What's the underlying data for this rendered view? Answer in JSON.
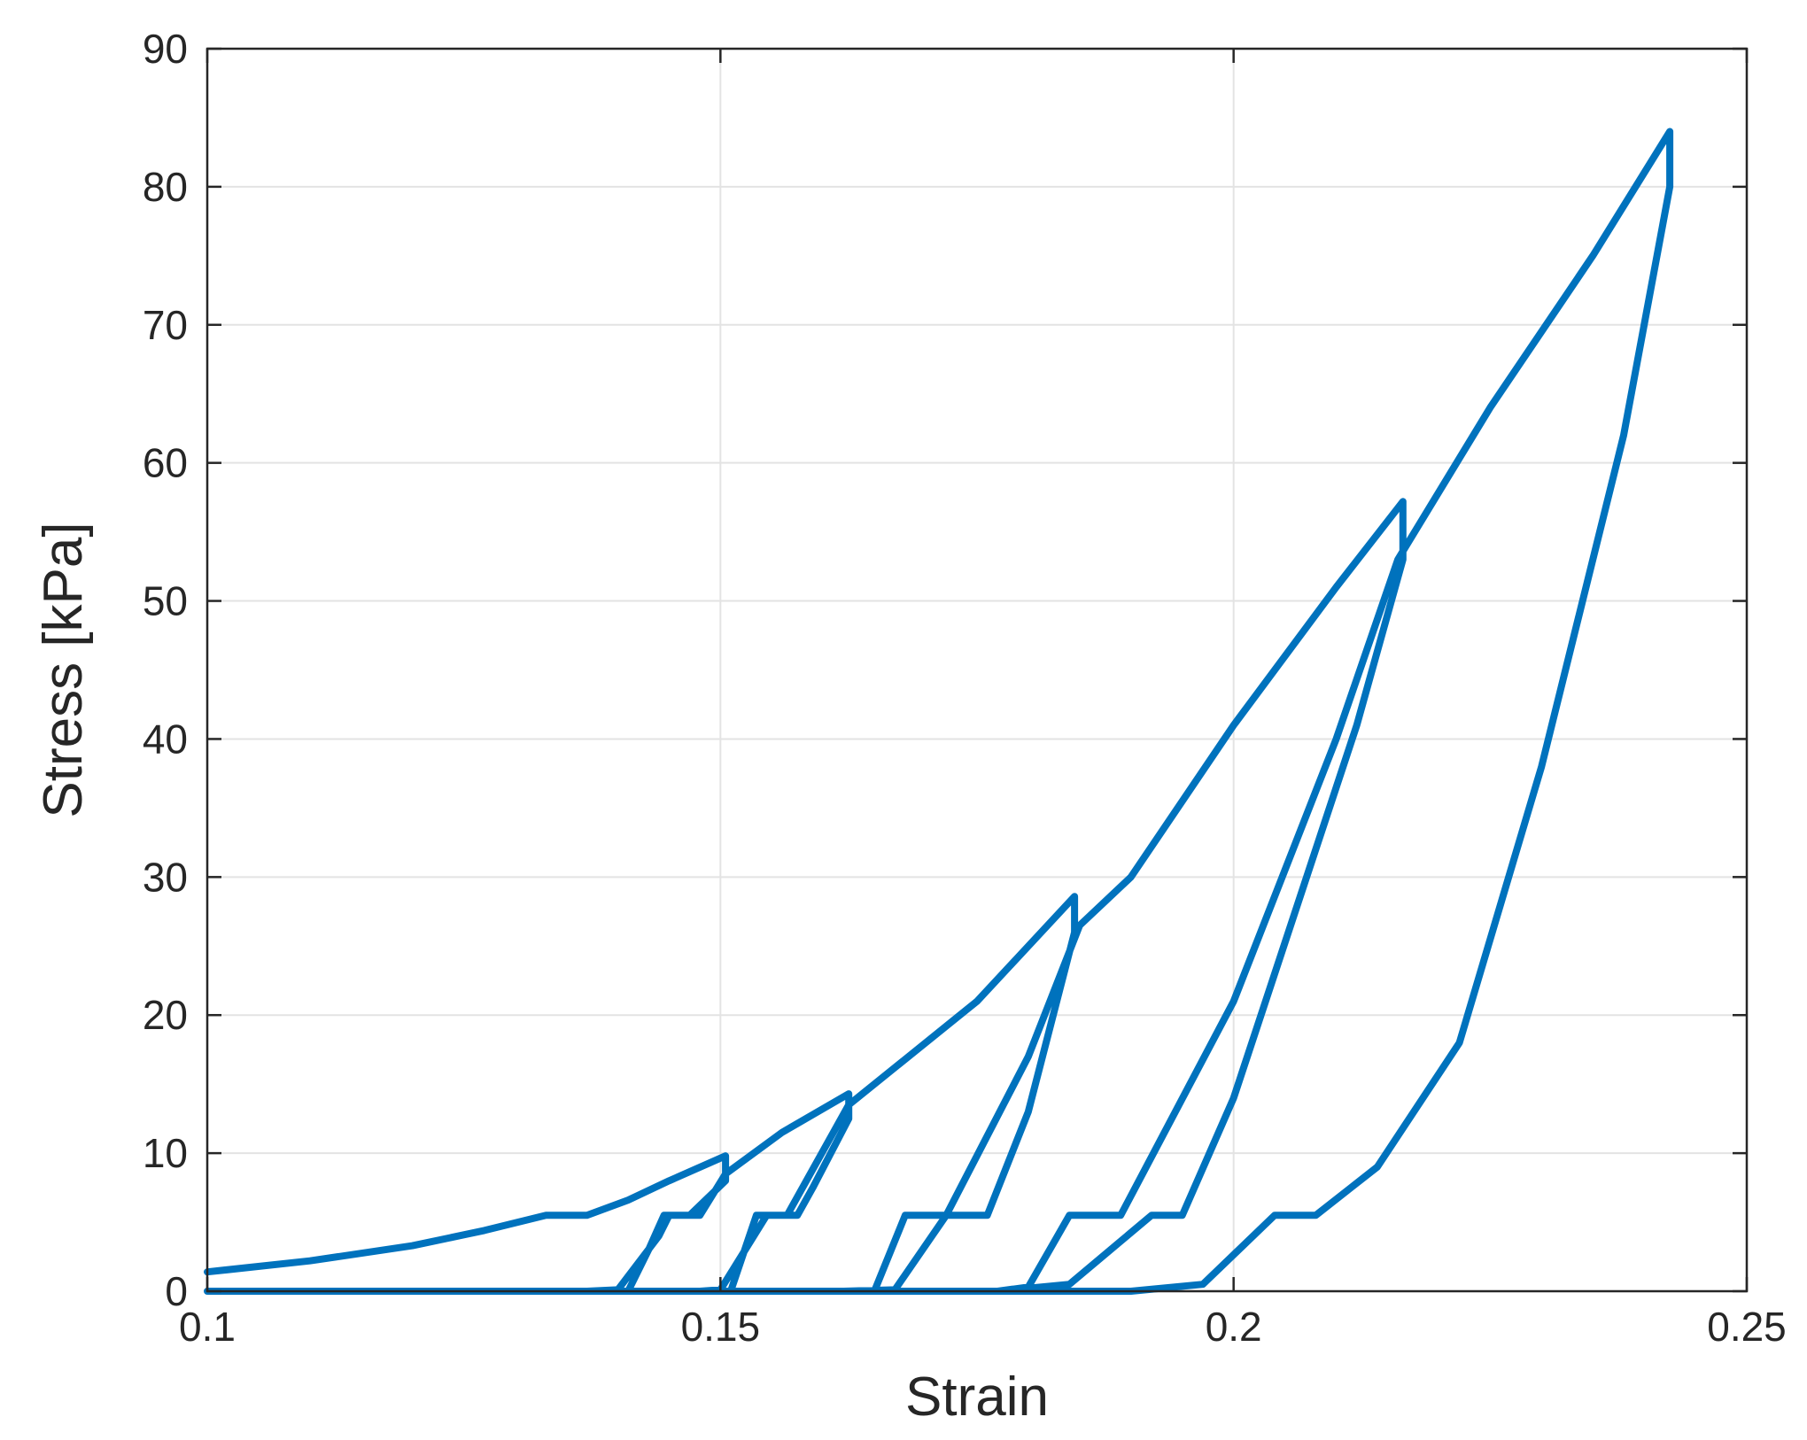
{
  "chart_data": {
    "type": "line",
    "title": "",
    "xlabel": "Strain",
    "ylabel": "Stress [kPa]",
    "xlim": [
      0.1,
      0.25
    ],
    "ylim": [
      0,
      90
    ],
    "xticks": [
      0.1,
      0.15,
      0.2,
      0.25
    ],
    "xtick_labels": [
      "0.1",
      "0.15",
      "0.2",
      "0.25"
    ],
    "yticks": [
      0,
      10,
      20,
      30,
      40,
      50,
      60,
      70,
      80,
      90
    ],
    "ytick_labels": [
      "0",
      "10",
      "20",
      "30",
      "40",
      "50",
      "60",
      "70",
      "80",
      "90"
    ],
    "grid": true,
    "box": true,
    "series": [
      {
        "color": "#0072BD",
        "points": [
          [
            0.1,
            1.4
          ],
          [
            0.11,
            2.2
          ],
          [
            0.12,
            3.3
          ],
          [
            0.127,
            4.4
          ],
          [
            0.133,
            5.5
          ],
          [
            0.137,
            5.5
          ],
          [
            0.141,
            6.6
          ],
          [
            0.145,
            8.0
          ],
          [
            0.1505,
            9.8
          ],
          [
            0.1505,
            8.0
          ],
          [
            0.147,
            5.5
          ],
          [
            0.145,
            5.5
          ],
          [
            0.144,
            4.0
          ],
          [
            0.14,
            0.1
          ],
          [
            0.137,
            0.0
          ],
          [
            0.141,
            0.0
          ],
          [
            0.143,
            3.0
          ],
          [
            0.1445,
            5.5
          ],
          [
            0.148,
            5.5
          ],
          [
            0.1505,
            8.5
          ],
          [
            0.156,
            11.5
          ],
          [
            0.1625,
            14.3
          ],
          [
            0.1625,
            12.5
          ],
          [
            0.159,
            7.5
          ],
          [
            0.1575,
            5.5
          ],
          [
            0.1545,
            5.5
          ],
          [
            0.15,
            0.1
          ],
          [
            0.148,
            0.0
          ],
          [
            0.151,
            0.0
          ],
          [
            0.1535,
            5.5
          ],
          [
            0.1565,
            5.5
          ],
          [
            0.1625,
            13.5
          ],
          [
            0.175,
            21.0
          ],
          [
            0.1845,
            28.6
          ],
          [
            0.1845,
            26.0
          ],
          [
            0.18,
            13.0
          ],
          [
            0.176,
            5.5
          ],
          [
            0.172,
            5.5
          ],
          [
            0.167,
            0.1
          ],
          [
            0.162,
            0.0
          ],
          [
            0.165,
            0.0
          ],
          [
            0.168,
            5.5
          ],
          [
            0.172,
            5.5
          ],
          [
            0.18,
            17.0
          ],
          [
            0.185,
            26.5
          ],
          [
            0.19,
            30.0
          ],
          [
            0.2,
            41.0
          ],
          [
            0.21,
            51.0
          ],
          [
            0.2165,
            57.2
          ],
          [
            0.2165,
            53.0
          ],
          [
            0.212,
            41.0
          ],
          [
            0.2,
            14.0
          ],
          [
            0.195,
            5.5
          ],
          [
            0.192,
            5.5
          ],
          [
            0.184,
            0.5
          ],
          [
            0.177,
            0.0
          ],
          [
            0.18,
            0.3
          ],
          [
            0.184,
            5.5
          ],
          [
            0.189,
            5.5
          ],
          [
            0.2,
            21.0
          ],
          [
            0.21,
            40.0
          ],
          [
            0.216,
            53.0
          ],
          [
            0.225,
            64.0
          ],
          [
            0.235,
            75.0
          ],
          [
            0.2425,
            84.0
          ],
          [
            0.2425,
            80.0
          ],
          [
            0.238,
            62.0
          ],
          [
            0.23,
            38.0
          ],
          [
            0.222,
            18.0
          ],
          [
            0.214,
            9.0
          ],
          [
            0.208,
            5.5
          ],
          [
            0.204,
            5.5
          ],
          [
            0.197,
            0.5
          ],
          [
            0.19,
            0.0
          ],
          [
            0.1,
            0.0
          ]
        ]
      }
    ]
  }
}
